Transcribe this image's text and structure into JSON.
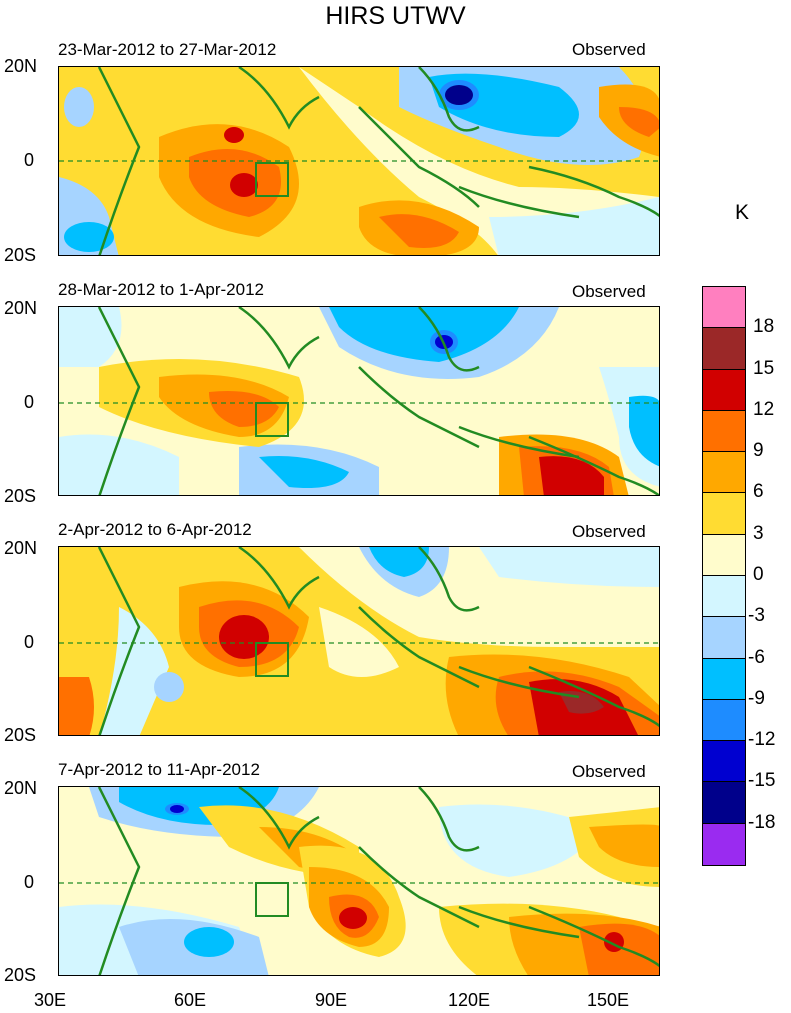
{
  "figure": {
    "title": "HIRS UTWV",
    "units_label": "K"
  },
  "panels": [
    {
      "date_range": "23-Mar-2012 to 27-Mar-2012",
      "label": "Observed"
    },
    {
      "date_range": "28-Mar-2012 to 1-Apr-2012",
      "label": "Observed"
    },
    {
      "date_range": "2-Apr-2012 to 6-Apr-2012",
      "label": "Observed"
    },
    {
      "date_range": "7-Apr-2012 to 11-Apr-2012",
      "label": "Observed"
    }
  ],
  "axes": {
    "lat_labels": [
      "20N",
      "0",
      "20S"
    ],
    "lon_labels": [
      "30E",
      "60E",
      "90E",
      "120E",
      "150E"
    ]
  },
  "colorbar": {
    "labels": [
      "18",
      "15",
      "12",
      "9",
      "6",
      "3",
      "0",
      "-3",
      "-6",
      "-9",
      "-12",
      "-15",
      "-18"
    ],
    "colors": [
      "#ff7fbf",
      "#9b2828",
      "#d10000",
      "#ff7000",
      "#ffa800",
      "#ffdc32",
      "#fffccc",
      "#d3f6ff",
      "#a6d4ff",
      "#00bfff",
      "#1e8cff",
      "#0000d0",
      "#00008b",
      "#9a2bf0"
    ]
  }
}
